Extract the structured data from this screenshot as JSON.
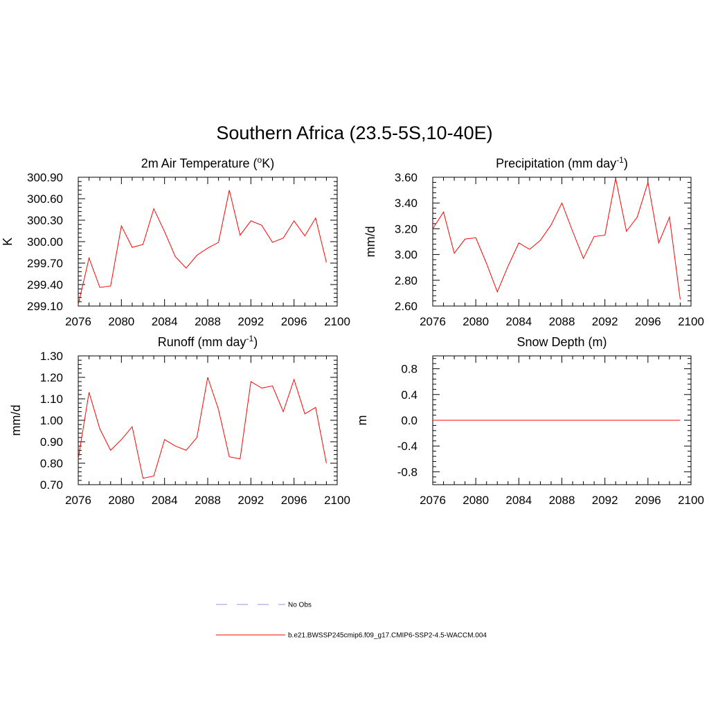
{
  "title": "Southern Africa (23.5-5S,10-40E)",
  "colors": {
    "model_line": "#ff0000",
    "obs_line": "#a8a8e8",
    "axis": "#000000"
  },
  "legend": {
    "obs_label": "No Obs",
    "model_label": "b.e21.BWSSP245cmip6.f09_g17.CMIP6-SSP2-4.5-WACCM.004"
  },
  "chart_data": [
    {
      "type": "line",
      "title_main": "2m Air Temperature (",
      "title_sup": "o",
      "title_tail": "K)",
      "ylabel": "K",
      "xlim": [
        2076,
        2100
      ],
      "ylim": [
        299.1,
        300.9
      ],
      "xticks": [
        "2076",
        "2080",
        "2084",
        "2088",
        "2092",
        "2096",
        "2100"
      ],
      "yticks": [
        "299.10",
        "299.40",
        "299.70",
        "300.00",
        "300.30",
        "300.60",
        "300.90"
      ],
      "x": [
        2076,
        2077,
        2078,
        2079,
        2080,
        2081,
        2082,
        2083,
        2084,
        2085,
        2086,
        2087,
        2088,
        2089,
        2090,
        2091,
        2092,
        2093,
        2094,
        2095,
        2096,
        2097,
        2098,
        2099
      ],
      "series": [
        {
          "values": [
            299.12,
            299.77,
            299.36,
            299.38,
            300.22,
            299.92,
            299.96,
            300.46,
            300.14,
            299.79,
            299.63,
            299.81,
            299.91,
            299.99,
            300.72,
            300.09,
            300.29,
            300.23,
            299.99,
            300.05,
            300.29,
            300.08,
            300.33,
            299.71
          ]
        }
      ]
    },
    {
      "type": "line",
      "title_main": "Precipitation (mm day",
      "title_sup": "-1",
      "title_tail": ")",
      "ylabel": "mm/d",
      "xlim": [
        2076,
        2100
      ],
      "ylim": [
        2.6,
        3.6
      ],
      "xticks": [
        "2076",
        "2080",
        "2084",
        "2088",
        "2092",
        "2096",
        "2100"
      ],
      "yticks": [
        "2.60",
        "2.80",
        "3.00",
        "3.20",
        "3.40",
        "3.60"
      ],
      "x": [
        2076,
        2077,
        2078,
        2079,
        2080,
        2081,
        2082,
        2083,
        2084,
        2085,
        2086,
        2087,
        2088,
        2089,
        2090,
        2091,
        2092,
        2093,
        2094,
        2095,
        2096,
        2097,
        2098,
        2099
      ],
      "series": [
        {
          "values": [
            3.2,
            3.33,
            3.01,
            3.12,
            3.13,
            2.93,
            2.71,
            2.91,
            3.09,
            3.04,
            3.11,
            3.23,
            3.4,
            3.18,
            2.97,
            3.14,
            3.15,
            3.59,
            3.18,
            3.29,
            3.56,
            3.09,
            3.29,
            2.65
          ]
        }
      ]
    },
    {
      "type": "line",
      "title_main": "Runoff (mm day",
      "title_sup": "-1",
      "title_tail": ")",
      "ylabel": "mm/d",
      "xlim": [
        2076,
        2100
      ],
      "ylim": [
        0.7,
        1.3
      ],
      "xticks": [
        "2076",
        "2080",
        "2084",
        "2088",
        "2092",
        "2096",
        "2100"
      ],
      "yticks": [
        "0.70",
        "0.80",
        "0.90",
        "1.00",
        "1.10",
        "1.20",
        "1.30"
      ],
      "x": [
        2076,
        2077,
        2078,
        2079,
        2080,
        2081,
        2082,
        2083,
        2084,
        2085,
        2086,
        2087,
        2088,
        2089,
        2090,
        2091,
        2092,
        2093,
        2094,
        2095,
        2096,
        2097,
        2098,
        2099
      ],
      "series": [
        {
          "values": [
            0.82,
            1.13,
            0.96,
            0.86,
            0.91,
            0.97,
            0.73,
            0.74,
            0.91,
            0.88,
            0.86,
            0.92,
            1.2,
            1.05,
            0.83,
            0.82,
            1.18,
            1.15,
            1.16,
            1.04,
            1.19,
            1.03,
            1.06,
            0.8
          ]
        }
      ]
    },
    {
      "type": "line",
      "title_main": "Snow Depth (m)",
      "title_sup": "",
      "title_tail": "",
      "ylabel": "m",
      "xlim": [
        2076,
        2100
      ],
      "ylim": [
        -1.0,
        1.0
      ],
      "xticks": [
        "2076",
        "2080",
        "2084",
        "2088",
        "2092",
        "2096",
        "2100"
      ],
      "yticks": [
        "-0.8",
        "-0.4",
        "0.0",
        "0.4",
        "0.8"
      ],
      "yticks_values": [
        -0.8,
        -0.4,
        0.0,
        0.4,
        0.8
      ],
      "x": [
        2076,
        2077,
        2078,
        2079,
        2080,
        2081,
        2082,
        2083,
        2084,
        2085,
        2086,
        2087,
        2088,
        2089,
        2090,
        2091,
        2092,
        2093,
        2094,
        2095,
        2096,
        2097,
        2098,
        2099
      ],
      "series": [
        {
          "values": [
            0,
            0,
            0,
            0,
            0,
            0,
            0,
            0,
            0,
            0,
            0,
            0,
            0,
            0,
            0,
            0,
            0,
            0,
            0,
            0,
            0,
            0,
            0,
            0
          ]
        }
      ]
    }
  ]
}
